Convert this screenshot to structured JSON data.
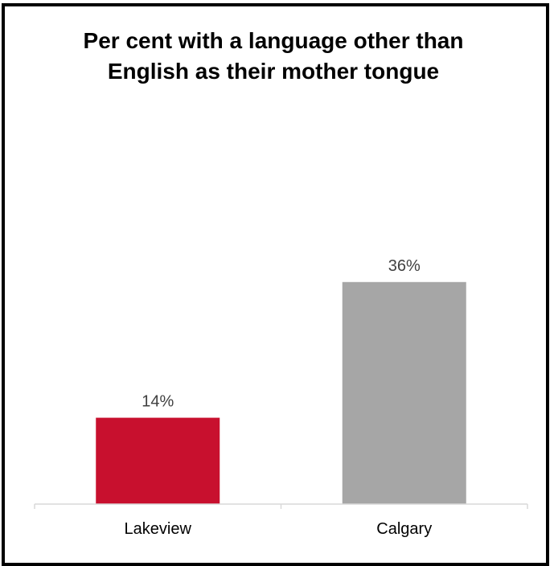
{
  "chart_data": {
    "type": "bar",
    "title": "Per cent with a language other than English as their mother tongue",
    "categories": [
      "Lakeview",
      "Calgary"
    ],
    "values": [
      14,
      36
    ],
    "value_labels": [
      "14%",
      "36%"
    ],
    "colors": [
      "#c8102e",
      "#a6a6a6"
    ],
    "xlabel": "",
    "ylabel": "",
    "ylim": [
      0,
      55
    ],
    "grid": false,
    "legend": "none"
  }
}
